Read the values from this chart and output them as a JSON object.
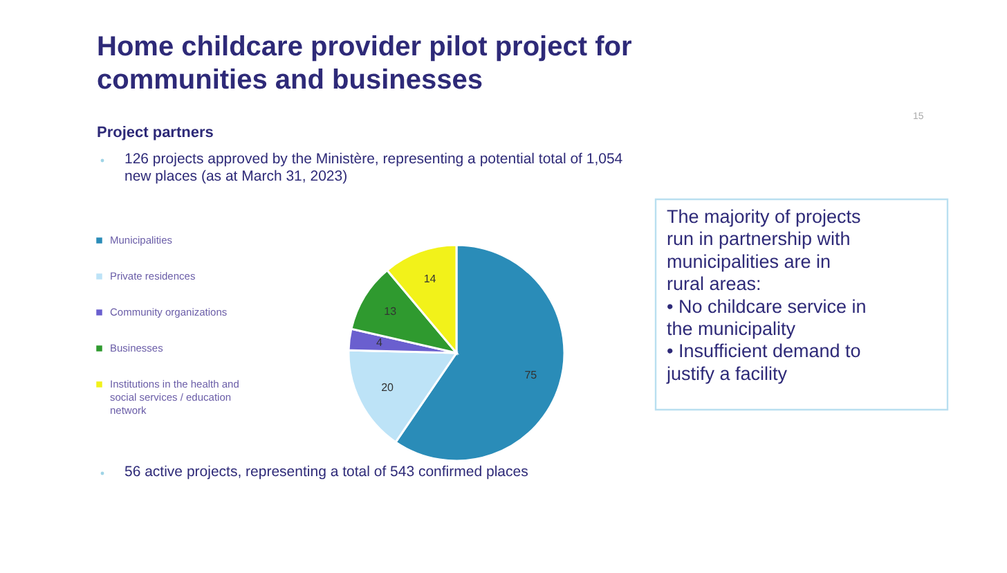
{
  "chart_data": {
    "type": "pie",
    "title": "Home childcare provider pilot project for communities and businesses",
    "subtitle": "Project partners",
    "categories": [
      "Municipalities",
      "Private residences",
      "Community organizations",
      "Businesses",
      "Institutions in the health and social services / education network"
    ],
    "values": [
      75,
      20,
      4,
      13,
      14
    ],
    "colors": [
      "#2a8cb8",
      "#bde3f7",
      "#6a5fcf",
      "#2f9a2f",
      "#f2f21a"
    ],
    "data_labels": true,
    "legend": "left",
    "annotations": [
      "126 projects approved by the Ministère, representing a potential total of 1,054 new places (as at March 31, 2023)",
      "56 active projects, representing a total of 543 confirmed places",
      "The majority of projects run in partnership with municipalities are in rural areas:\n• No childcare service in the municipality\n• Insufficient demand to justify a facility",
      "15"
    ]
  }
}
